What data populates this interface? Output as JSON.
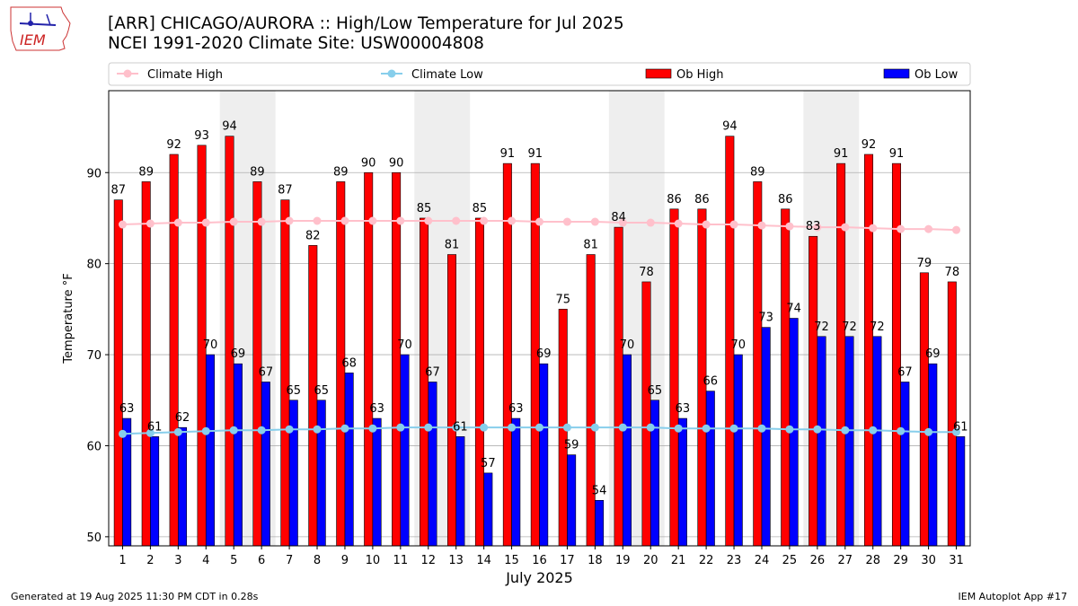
{
  "title_line1": "[ARR] CHICAGO/AURORA :: High/Low Temperature for Jul 2025",
  "title_line2": "NCEI 1991-2020 Climate Site: USW00004808",
  "logo_text": "IEM",
  "footer_left": "Generated at 19 Aug 2025 11:30 PM CDT in 0.28s",
  "footer_right": "IEM Autoplot App #17",
  "colors": {
    "ob_high": "#ff0000",
    "ob_low": "#0000ff",
    "climate_high": "#ffc0cb",
    "climate_low": "#87ceeb",
    "weekend": "#eeeeee",
    "grid": "#b0b0b0"
  },
  "chart_data": {
    "type": "bar",
    "xlabel": "July 2025",
    "ylabel": "Temperature °F",
    "ylim": [
      49,
      99
    ],
    "yticks": [
      50,
      60,
      70,
      80,
      90
    ],
    "grid": "horizontal",
    "legend": {
      "placement": "top",
      "entries": [
        "Climate High",
        "Climate Low",
        "Ob High",
        "Ob Low"
      ]
    },
    "shaded_weekends": [
      [
        5,
        6
      ],
      [
        12,
        13
      ],
      [
        19,
        20
      ],
      [
        26,
        27
      ]
    ],
    "categories": [
      "1",
      "2",
      "3",
      "4",
      "5",
      "6",
      "7",
      "8",
      "9",
      "10",
      "11",
      "12",
      "13",
      "14",
      "15",
      "16",
      "17",
      "18",
      "19",
      "20",
      "21",
      "22",
      "23",
      "24",
      "25",
      "26",
      "27",
      "28",
      "29",
      "30",
      "31"
    ],
    "series": [
      {
        "name": "Ob High",
        "kind": "bar",
        "values": [
          87,
          89,
          92,
          93,
          94,
          89,
          87,
          82,
          89,
          90,
          90,
          85,
          81,
          85,
          91,
          91,
          75,
          81,
          84,
          78,
          86,
          86,
          94,
          89,
          86,
          83,
          91,
          92,
          91,
          79,
          78
        ]
      },
      {
        "name": "Ob Low",
        "kind": "bar",
        "values": [
          63,
          61,
          62,
          70,
          69,
          67,
          65,
          65,
          68,
          63,
          70,
          67,
          61,
          57,
          63,
          69,
          59,
          54,
          70,
          65,
          63,
          66,
          70,
          73,
          74,
          72,
          72,
          72,
          67,
          69,
          61
        ]
      },
      {
        "name": "Climate High",
        "kind": "line",
        "values": [
          84.3,
          84.4,
          84.5,
          84.5,
          84.6,
          84.6,
          84.7,
          84.7,
          84.7,
          84.7,
          84.7,
          84.7,
          84.7,
          84.7,
          84.7,
          84.6,
          84.6,
          84.6,
          84.5,
          84.5,
          84.4,
          84.3,
          84.3,
          84.2,
          84.1,
          84.0,
          84.0,
          83.9,
          83.8,
          83.8,
          83.7
        ]
      },
      {
        "name": "Climate Low",
        "kind": "line",
        "values": [
          61.3,
          61.4,
          61.5,
          61.6,
          61.7,
          61.7,
          61.8,
          61.8,
          61.9,
          61.9,
          62.0,
          62.0,
          62.0,
          62.0,
          62.0,
          62.0,
          62.0,
          62.0,
          62.0,
          62.0,
          61.9,
          61.9,
          61.9,
          61.9,
          61.8,
          61.8,
          61.7,
          61.7,
          61.6,
          61.5,
          61.5
        ]
      }
    ]
  }
}
